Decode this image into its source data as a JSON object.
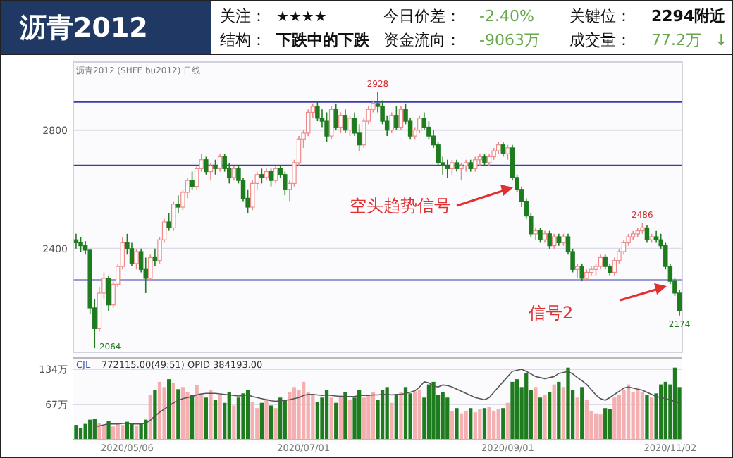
{
  "chart_data": [
    {
      "type": "candlestick",
      "title": "沥青2012",
      "annotations": [
        "关注：",
        "★★★★",
        "今日价差：",
        "-2.40%",
        "关键位：",
        "2294附近",
        "结构：",
        "下跌中的下跌",
        "资金流向：",
        "-9063万",
        "成交量：",
        "77.2万",
        "↓",
        "沥青2012 (SHFE bu2012) 日线",
        "空头趋势信号",
        "信号2",
        {
          "text": "2928",
          "y": 2928
        },
        "2486",
        "2174",
        "2064"
      ],
      "colors": [
        "#1e7b1e",
        "#1e7b1e",
        "#1e7b1e",
        "#1e7b1e",
        "#1e7b1e",
        "#f08a8a",
        "#f08a8a",
        "#1e7b1e",
        "#f08a8a",
        "#f08a8a",
        "#f08a8a",
        "#1e7b1e",
        "#1e7b1e",
        "#f08a8a",
        "#1e7b1e",
        "#1e7b1e",
        "#f08a8a",
        "#1e7b1e",
        "#f08a8a",
        "#f08a8a",
        "#1e7b1e",
        "#f08a8a",
        "#1e7b1e",
        "#f08a8a",
        "#f08a8a",
        "#1e7b1e",
        "#f08a8a",
        "#f08a8a",
        "#1e7b1e",
        "#f08a8a",
        "#1e7b1e",
        "#f08a8a",
        "#1e7b1e",
        "#1e7b1e",
        "#f08a8a",
        "#1e7b1e",
        "#1e7b1e",
        "#1e7b1e",
        "#f08a8a",
        "#f08a8a",
        "#1e7b1e",
        "#f08a8a",
        "#1e7b1e",
        "#f08a8a",
        "#1e7b1e",
        "#1e7b1e",
        "#f08a8a",
        "#f08a8a",
        "#f08a8a",
        "#f08a8a",
        "#f08a8a",
        "#f08a8a",
        "#1e7b1e",
        "#1e7b1e",
        "#1e7b1e",
        "#f08a8a",
        "#1e7b1e",
        "#f08a8a",
        "#1e7b1e",
        "#f08a8a",
        "#1e7b1e",
        "#1e7b1e",
        "#f08a8a",
        "#f08a8a",
        "#f08a8a",
        "#1e7b1e",
        "#1e7b1e",
        "#1e7b1e",
        "#f08a8a",
        "#1e7b1e",
        "#f08a8a",
        "#1e7b1e",
        "#1e7b1e",
        "#f08a8a",
        "#f08a8a",
        "#1e7b1e",
        "#1e7b1e",
        "#1e7b1e",
        "#1e7b1e",
        "#1e7b1e",
        "#1e7b1e",
        "#f08a8a",
        "#1e7b1e",
        "#f08a8a",
        "#f08a8a",
        "#1e7b1e",
        "#f08a8a",
        "#f08a8a",
        "#1e7b1e",
        "#f08a8a",
        "#f08a8a",
        "#f08a8a",
        "#1e7b1e",
        "#f08a8a",
        "#1e7b1e",
        "#1e7b1e",
        "#1e7b1e",
        "#1e7b1e",
        "#1e7b1e",
        "#f08a8a",
        "#1e7b1e",
        "#f08a8a",
        "#1e7b1e",
        "#f08a8a",
        "#1e7b1e",
        "#f08a8a",
        "#1e7b1e",
        "#1e7b1e",
        "#f08a8a",
        "#1e7b1e",
        "#f08a8a",
        "#f08a8a",
        "#f08a8a",
        "#f08a8a",
        "#1e7b1e",
        "#1e7b1e",
        "#f08a8a",
        "#f08a8a",
        "#f08a8a",
        "#f08a8a",
        "#f08a8a",
        "#f08a8a",
        "#f08a8a",
        "#1e7b1e",
        "#f08a8a",
        "#1e7b1e",
        "#1e7b1e",
        "#1e7b1e",
        "#1e7b1e",
        "#1e7b1e",
        "#1e7b1e"
      ],
      "categories": [
        null,
        null,
        null,
        null,
        null,
        null,
        null,
        null,
        null,
        null,
        null,
        null,
        null,
        null,
        null,
        null,
        null,
        null,
        null,
        null,
        null,
        null,
        null,
        null,
        null,
        null,
        null,
        null,
        null,
        null,
        null,
        null,
        null,
        null,
        null,
        null,
        null,
        null,
        null,
        null,
        null,
        null,
        null,
        null,
        null,
        null,
        null,
        null,
        null,
        null,
        null,
        null,
        null,
        null,
        null,
        null,
        null,
        null,
        null,
        null,
        null,
        null,
        null,
        null,
        null,
        null,
        null,
        null,
        null,
        null,
        null,
        null,
        null,
        null,
        null,
        null,
        null,
        null,
        null,
        null,
        null,
        null,
        null,
        null,
        null,
        null,
        null,
        null,
        null,
        null,
        null,
        null,
        null,
        null,
        null,
        null,
        null,
        null,
        null,
        null,
        null,
        null,
        null,
        null,
        null,
        null,
        null,
        null,
        null,
        null,
        null,
        null,
        null,
        null,
        null,
        null,
        null,
        null,
        null,
        null,
        null,
        null,
        null,
        null,
        null,
        null,
        null,
        null,
        null,
        null,
        null
      ],
      "ohlc": [
        [
          2430,
          2450,
          2400,
          2420
        ],
        [
          2420,
          2440,
          2390,
          2410
        ],
        [
          2410,
          2425,
          2380,
          2395
        ],
        [
          2395,
          2400,
          2180,
          2200
        ],
        [
          2200,
          2230,
          2064,
          2130
        ],
        [
          2130,
          2270,
          2120,
          2250
        ],
        [
          2250,
          2320,
          2230,
          2300
        ],
        [
          2300,
          2310,
          2190,
          2210
        ],
        [
          2210,
          2290,
          2200,
          2280
        ],
        [
          2280,
          2350,
          2270,
          2340
        ],
        [
          2340,
          2440,
          2330,
          2420
        ],
        [
          2420,
          2450,
          2380,
          2400
        ],
        [
          2400,
          2420,
          2340,
          2350
        ],
        [
          2350,
          2400,
          2330,
          2390
        ],
        [
          2390,
          2400,
          2320,
          2330
        ],
        [
          2330,
          2370,
          2250,
          2300
        ],
        [
          2300,
          2380,
          2290,
          2370
        ],
        [
          2370,
          2400,
          2340,
          2360
        ],
        [
          2360,
          2440,
          2350,
          2430
        ],
        [
          2430,
          2500,
          2420,
          2490
        ],
        [
          2490,
          2520,
          2460,
          2470
        ],
        [
          2470,
          2560,
          2460,
          2550
        ],
        [
          2550,
          2580,
          2520,
          2540
        ],
        [
          2540,
          2600,
          2530,
          2590
        ],
        [
          2590,
          2640,
          2570,
          2630
        ],
        [
          2630,
          2660,
          2600,
          2610
        ],
        [
          2610,
          2680,
          2600,
          2670
        ],
        [
          2670,
          2720,
          2660,
          2700
        ],
        [
          2700,
          2710,
          2650,
          2660
        ],
        [
          2660,
          2690,
          2630,
          2680
        ],
        [
          2680,
          2700,
          2650,
          2670
        ],
        [
          2670,
          2720,
          2660,
          2710
        ],
        [
          2710,
          2720,
          2660,
          2670
        ],
        [
          2670,
          2690,
          2620,
          2640
        ],
        [
          2640,
          2680,
          2630,
          2670
        ],
        [
          2670,
          2680,
          2620,
          2630
        ],
        [
          2630,
          2640,
          2560,
          2570
        ],
        [
          2570,
          2600,
          2520,
          2540
        ],
        [
          2540,
          2630,
          2530,
          2620
        ],
        [
          2620,
          2660,
          2600,
          2650
        ],
        [
          2650,
          2670,
          2620,
          2640
        ],
        [
          2640,
          2670,
          2630,
          2660
        ],
        [
          2660,
          2670,
          2610,
          2630
        ],
        [
          2630,
          2680,
          2620,
          2670
        ],
        [
          2670,
          2680,
          2640,
          2650
        ],
        [
          2650,
          2660,
          2580,
          2600
        ],
        [
          2600,
          2630,
          2560,
          2620
        ],
        [
          2620,
          2700,
          2610,
          2690
        ],
        [
          2690,
          2780,
          2680,
          2770
        ],
        [
          2770,
          2800,
          2740,
          2790
        ],
        [
          2790,
          2870,
          2780,
          2860
        ],
        [
          2860,
          2890,
          2840,
          2880
        ],
        [
          2880,
          2895,
          2830,
          2840
        ],
        [
          2840,
          2870,
          2810,
          2830
        ],
        [
          2830,
          2860,
          2760,
          2780
        ],
        [
          2780,
          2880,
          2770,
          2870
        ],
        [
          2870,
          2890,
          2800,
          2810
        ],
        [
          2810,
          2860,
          2790,
          2850
        ],
        [
          2850,
          2870,
          2790,
          2800
        ],
        [
          2800,
          2850,
          2780,
          2840
        ],
        [
          2840,
          2860,
          2780,
          2790
        ],
        [
          2790,
          2820,
          2730,
          2750
        ],
        [
          2750,
          2840,
          2740,
          2830
        ],
        [
          2830,
          2880,
          2820,
          2870
        ],
        [
          2870,
          2900,
          2860,
          2890
        ],
        [
          2890,
          2928,
          2860,
          2880
        ],
        [
          2880,
          2900,
          2820,
          2830
        ],
        [
          2830,
          2850,
          2780,
          2800
        ],
        [
          2800,
          2860,
          2790,
          2850
        ],
        [
          2850,
          2880,
          2800,
          2810
        ],
        [
          2810,
          2880,
          2800,
          2870
        ],
        [
          2870,
          2890,
          2820,
          2830
        ],
        [
          2830,
          2840,
          2770,
          2780
        ],
        [
          2780,
          2810,
          2770,
          2800
        ],
        [
          2800,
          2850,
          2790,
          2840
        ],
        [
          2840,
          2860,
          2800,
          2810
        ],
        [
          2810,
          2830,
          2770,
          2780
        ],
        [
          2780,
          2800,
          2740,
          2750
        ],
        [
          2750,
          2760,
          2680,
          2690
        ],
        [
          2690,
          2710,
          2650,
          2680
        ],
        [
          2680,
          2700,
          2640,
          2670
        ],
        [
          2670,
          2700,
          2650,
          2690
        ],
        [
          2690,
          2700,
          2660,
          2670
        ],
        [
          2670,
          2690,
          2630,
          2680
        ],
        [
          2680,
          2700,
          2660,
          2690
        ],
        [
          2690,
          2700,
          2660,
          2670
        ],
        [
          2670,
          2710,
          2660,
          2700
        ],
        [
          2700,
          2720,
          2680,
          2710
        ],
        [
          2710,
          2720,
          2680,
          2690
        ],
        [
          2690,
          2720,
          2680,
          2710
        ],
        [
          2710,
          2740,
          2700,
          2730
        ],
        [
          2730,
          2760,
          2720,
          2750
        ],
        [
          2750,
          2760,
          2710,
          2720
        ],
        [
          2720,
          2750,
          2700,
          2740
        ],
        [
          2740,
          2750,
          2630,
          2640
        ],
        [
          2640,
          2650,
          2590,
          2600
        ],
        [
          2600,
          2610,
          2540,
          2560
        ],
        [
          2560,
          2570,
          2500,
          2510
        ],
        [
          2510,
          2520,
          2440,
          2450
        ],
        [
          2450,
          2470,
          2430,
          2460
        ],
        [
          2460,
          2470,
          2420,
          2430
        ],
        [
          2430,
          2460,
          2420,
          2450
        ],
        [
          2450,
          2460,
          2400,
          2410
        ],
        [
          2410,
          2450,
          2400,
          2440
        ],
        [
          2440,
          2450,
          2410,
          2420
        ],
        [
          2420,
          2450,
          2410,
          2440
        ],
        [
          2440,
          2450,
          2380,
          2390
        ],
        [
          2390,
          2400,
          2320,
          2330
        ],
        [
          2330,
          2350,
          2300,
          2340
        ],
        [
          2340,
          2350,
          2290,
          2300
        ],
        [
          2300,
          2330,
          2290,
          2320
        ],
        [
          2320,
          2340,
          2310,
          2330
        ],
        [
          2330,
          2350,
          2310,
          2340
        ],
        [
          2340,
          2380,
          2330,
          2370
        ],
        [
          2370,
          2380,
          2330,
          2340
        ],
        [
          2340,
          2350,
          2310,
          2320
        ],
        [
          2320,
          2370,
          2310,
          2360
        ],
        [
          2360,
          2400,
          2350,
          2390
        ],
        [
          2390,
          2430,
          2380,
          2420
        ],
        [
          2420,
          2450,
          2410,
          2440
        ],
        [
          2440,
          2460,
          2430,
          2450
        ],
        [
          2450,
          2470,
          2440,
          2460
        ],
        [
          2460,
          2486,
          2450,
          2470
        ],
        [
          2470,
          2480,
          2420,
          2430
        ],
        [
          2430,
          2450,
          2420,
          2440
        ],
        [
          2440,
          2460,
          2420,
          2430
        ],
        [
          2430,
          2450,
          2400,
          2410
        ],
        [
          2410,
          2420,
          2330,
          2340
        ],
        [
          2340,
          2350,
          2280,
          2290
        ],
        [
          2290,
          2300,
          2240,
          2250
        ],
        [
          2250,
          2260,
          2174,
          2190
        ]
      ],
      "ylim": [
        2050,
        3030
      ],
      "yticks": [
        2400,
        2800
      ],
      "grid": "y",
      "tick_labels": "y",
      "ref_lines": [
        {
          "axis": "y",
          "value": 2895,
          "color": "#3b3bb0"
        },
        {
          "axis": "y",
          "value": 2681,
          "color": "#3b3bb0"
        },
        {
          "axis": "y",
          "value": 2294,
          "color": "#3b3bb0"
        }
      ]
    },
    {
      "type": "bar",
      "annotations": [
        "CJL",
        "772115.00(49:51)  OPID 384193.00"
      ],
      "categories": [
        null,
        null,
        null,
        null,
        null,
        null,
        null,
        null,
        null,
        null,
        null,
        "2020/05/06",
        null,
        null,
        null,
        null,
        null,
        null,
        null,
        null,
        null,
        null,
        null,
        null,
        null,
        null,
        null,
        null,
        null,
        null,
        null,
        null,
        null,
        null,
        null,
        null,
        null,
        null,
        null,
        null,
        null,
        null,
        null,
        null,
        null,
        null,
        null,
        null,
        null,
        "2020/07/01",
        null,
        null,
        null,
        null,
        null,
        null,
        null,
        null,
        null,
        null,
        null,
        null,
        null,
        null,
        null,
        null,
        null,
        null,
        null,
        null,
        null,
        null,
        null,
        null,
        null,
        null,
        null,
        null,
        null,
        null,
        null,
        null,
        null,
        null,
        null,
        null,
        null,
        null,
        null,
        null,
        null,
        null,
        null,
        "2020/09/01",
        null,
        null,
        null,
        null,
        null,
        null,
        null,
        null,
        null,
        null,
        null,
        null,
        null,
        null,
        null,
        null,
        null,
        null,
        null,
        null,
        null,
        null,
        null,
        null,
        null,
        null,
        null,
        null,
        null,
        null,
        null,
        null,
        null,
        null,
        "2020/11/02",
        null,
        null
      ],
      "series": [
        {
          "type": "bar",
          "color": "#f4b0b0",
          "values": [
            null,
            null,
            null,
            null,
            null,
            32,
            26,
            null,
            25,
            30,
            28,
            null,
            null,
            27,
            null,
            null,
            85,
            null,
            110,
            100,
            null,
            108,
            null,
            100,
            90,
            null,
            104,
            88,
            null,
            95,
            null,
            85,
            null,
            null,
            65,
            null,
            null,
            null,
            72,
            60,
            null,
            78,
            null,
            60,
            null,
            null,
            90,
            100,
            95,
            110,
            90,
            85,
            null,
            null,
            null,
            80,
            null,
            85,
            null,
            75,
            null,
            null,
            80,
            85,
            90,
            null,
            null,
            null,
            70,
            null,
            90,
            null,
            null,
            92,
            95,
            null,
            null,
            null,
            null,
            null,
            null,
            55,
            null,
            50,
            55,
            null,
            52,
            58,
            null,
            62,
            55,
            58,
            null,
            70,
            null,
            null,
            null,
            null,
            null,
            100,
            null,
            85,
            null,
            105,
            null,
            100,
            null,
            null,
            80,
            null,
            75,
            55,
            50,
            48,
            null,
            null,
            80,
            85,
            95,
            105,
            90,
            95,
            90,
            null,
            80,
            null,
            null,
            null,
            null,
            null,
            null
          ]
        },
        {
          "type": "bar",
          "color": "#1e7b1e",
          "values": [
            28,
            22,
            30,
            38,
            40,
            null,
            null,
            35,
            null,
            null,
            null,
            34,
            30,
            null,
            32,
            38,
            null,
            95,
            null,
            null,
            115,
            null,
            96,
            null,
            null,
            85,
            null,
            null,
            80,
            null,
            75,
            null,
            70,
            90,
            null,
            80,
            88,
            95,
            null,
            null,
            70,
            null,
            65,
            null,
            80,
            75,
            null,
            null,
            null,
            null,
            null,
            null,
            72,
            80,
            95,
            null,
            70,
            null,
            90,
            null,
            80,
            95,
            null,
            null,
            null,
            75,
            95,
            100,
            null,
            85,
            null,
            100,
            88,
            null,
            null,
            80,
            105,
            110,
            85,
            90,
            80,
            null,
            60,
            null,
            null,
            60,
            null,
            null,
            60,
            null,
            null,
            null,
            60,
            null,
            110,
            115,
            100,
            127,
            95,
            null,
            80,
            null,
            90,
            null,
            110,
            null,
            137,
            95,
            null,
            100,
            null,
            null,
            null,
            null,
            60,
            58,
            null,
            null,
            null,
            null,
            null,
            null,
            null,
            85,
            null,
            88,
            105,
            110,
            105,
            137,
            100
          ]
        },
        {
          "type": "line",
          "color": "#555555",
          "values": [
            null,
            null,
            null,
            null,
            25,
            26,
            28,
            30,
            30,
            30,
            31,
            31,
            30,
            30,
            30,
            31,
            37,
            45,
            52,
            58,
            64,
            70,
            74,
            78,
            80,
            82,
            85,
            87,
            88,
            88,
            88,
            87,
            86,
            85,
            84,
            83,
            84,
            85,
            82,
            80,
            78,
            76,
            74,
            73,
            74,
            75,
            76,
            78,
            80,
            84,
            86,
            86,
            85,
            84,
            85,
            84,
            83,
            82,
            82,
            82,
            82,
            84,
            84,
            84,
            85,
            85,
            86,
            86,
            85,
            86,
            86,
            88,
            90,
            93,
            100,
            110,
            108,
            102,
            100,
            104,
            103,
            100,
            96,
            92,
            88,
            84,
            80,
            78,
            76,
            80,
            90,
            100,
            110,
            120,
            130,
            132,
            134,
            130,
            125,
            120,
            118,
            116,
            118,
            120,
            126,
            128,
            130,
            125,
            118,
            112,
            105,
            95,
            85,
            78,
            75,
            80,
            86,
            92,
            98,
            100,
            98,
            96,
            94,
            90,
            86,
            82,
            80,
            78,
            76,
            72,
            70
          ]
        }
      ],
      "ylim": [
        0,
        150
      ],
      "yticks": [
        {
          "value": 67,
          "label": "67万"
        },
        {
          "value": 134,
          "label": "134万"
        }
      ],
      "grid": "y"
    }
  ]
}
